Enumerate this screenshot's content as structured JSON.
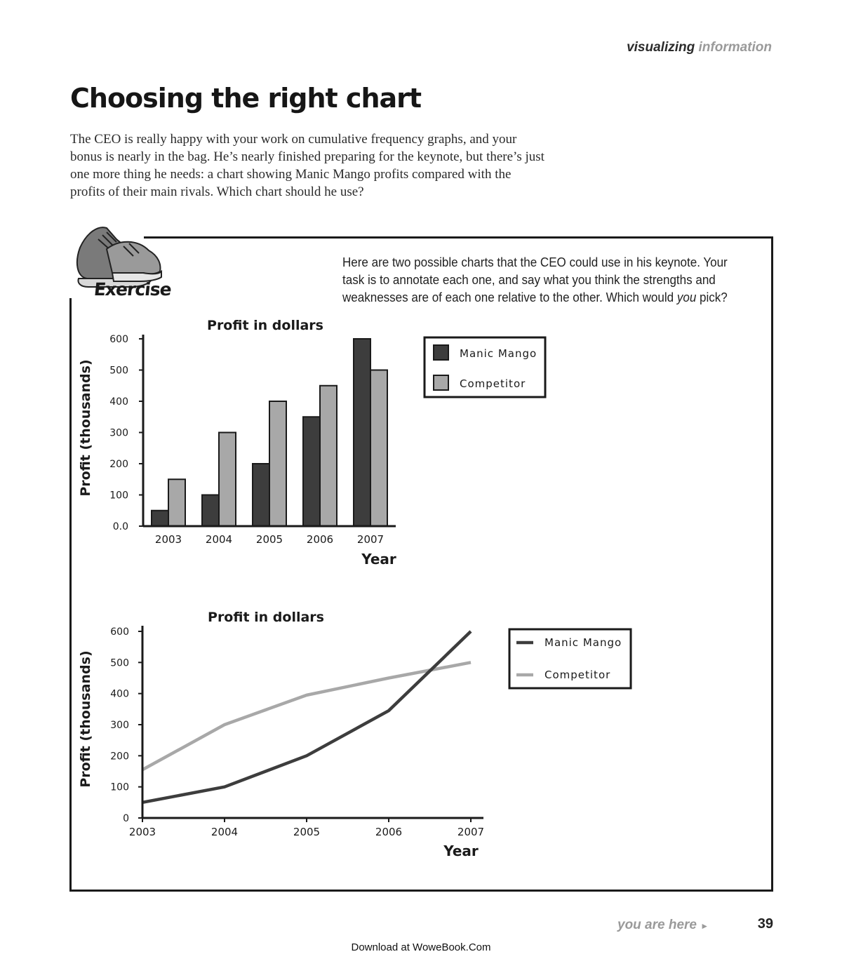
{
  "header": {
    "section_dark": "visualizing",
    "section_light": "information"
  },
  "title": "Choosing the right chart",
  "intro": "The CEO is really happy with your work on cumulative frequency graphs, and your bonus is nearly in the bag. He’s nearly finished preparing for the keynote, but there’s just one more thing he needs: a chart showing Manic Mango profits compared with the profits of their main rivals. Which chart should he use?",
  "exercise": {
    "label": "Exercise",
    "instructions_before": "Here are two possible charts that the CEO could use in his keynote. Your task is to annotate each one, and say what you think the strengths and weaknesses are of each one relative to the other. Which would ",
    "instructions_em": "you",
    "instructions_after": " pick?"
  },
  "colors": {
    "dark_series": "#3d3d3d",
    "light_series": "#a8a8a8",
    "text": "#1a1a1a"
  },
  "chart_data": [
    {
      "type": "bar",
      "title": "Profit in dollars",
      "xlabel": "Year",
      "ylabel": "Profit (thousands)",
      "categories": [
        "2003",
        "2004",
        "2005",
        "2006",
        "2007"
      ],
      "ylim": [
        0,
        600
      ],
      "yticks": [
        "0.0",
        "100",
        "200",
        "300",
        "400",
        "500",
        "600"
      ],
      "grid": false,
      "legend": "right",
      "series": [
        {
          "name": "Manic Mango",
          "values": [
            50,
            100,
            200,
            350,
            600
          ]
        },
        {
          "name": "Competitor",
          "values": [
            150,
            300,
            400,
            450,
            500
          ]
        }
      ]
    },
    {
      "type": "line",
      "title": "Profit in dollars",
      "xlabel": "Year",
      "ylabel": "Profit (thousands)",
      "x": [
        "2003",
        "2004",
        "2005",
        "2006",
        "2007"
      ],
      "ylim": [
        0,
        600
      ],
      "yticks": [
        "0",
        "100",
        "200",
        "300",
        "400",
        "500",
        "600"
      ],
      "grid": false,
      "legend": "right",
      "series": [
        {
          "name": "Manic Mango",
          "values": [
            50,
            100,
            200,
            345,
            600
          ]
        },
        {
          "name": "Competitor",
          "values": [
            155,
            300,
            395,
            450,
            500
          ]
        }
      ]
    }
  ],
  "footer": {
    "you_are_here": "you are here",
    "page_number": "39",
    "download": "Download at WoweBook.Com"
  }
}
